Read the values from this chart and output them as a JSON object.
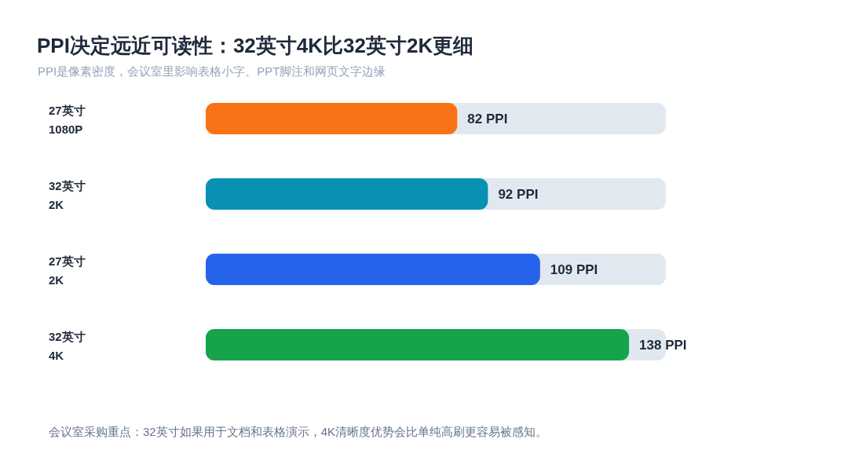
{
  "chart_data": {
    "type": "bar",
    "orientation": "horizontal",
    "title": "PPI决定远近可读性：32英寸4K比32英寸2K更细",
    "subtitle": "PPI是像素密度，会议室里影响表格小字、PPT脚注和网页文字边缘",
    "categories": [
      "27英寸\n1080P",
      "32英寸\n2K",
      "27英寸\n2K",
      "32英寸\n4K"
    ],
    "values": [
      82,
      92,
      109,
      138
    ],
    "colors": [
      "#f97316",
      "#0891b2",
      "#2563eb",
      "#16a34a"
    ],
    "value_labels": [
      "82 PPI",
      "92 PPI",
      "109 PPI",
      "138 PPI"
    ],
    "xlim": [
      0,
      150
    ],
    "annotations": [
      "会议室采购重点：32英寸如果用于文档和表格演示，4K清晰度优势会比单纯高刷更容易被感知。"
    ]
  }
}
